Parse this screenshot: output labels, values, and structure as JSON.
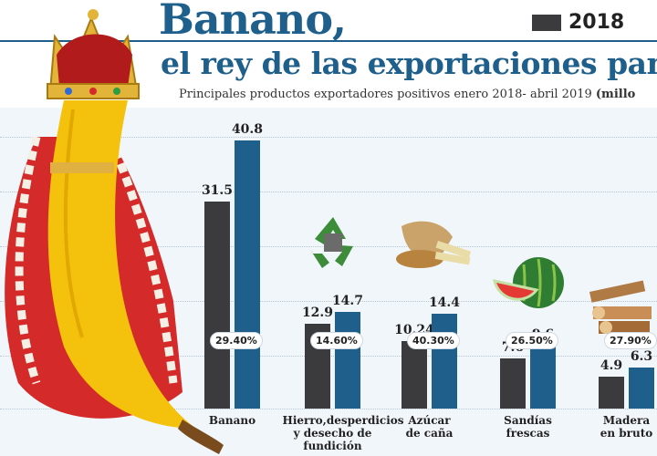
{
  "header": {
    "title": "Banano,",
    "subtitle_line": "el rey de las exportaciones pana",
    "description": "Principales productos exportadores positivos enero 2018- abril 2019",
    "description_unit": "(millo"
  },
  "legend": [
    {
      "label": "2018",
      "color": "#3b3b3d"
    }
  ],
  "colors": {
    "bar_2018": "#3b3b3d",
    "bar_2019": "#1e5f8c",
    "title": "#1e5f8c"
  },
  "chart_data": {
    "type": "bar",
    "title": "Banano, el rey de las exportaciones pana",
    "categories": [
      "Banano",
      "Hierro,desperdicios\ny desecho de\nfundición",
      "Azúcar\nde caña",
      "Sandías\nfrescas",
      "Madera\nen bruto"
    ],
    "series": [
      {
        "name": "2018",
        "values": [
          31.5,
          12.9,
          10.24,
          7.6,
          4.9
        ]
      },
      {
        "values": [
          40.8,
          14.7,
          14.4,
          9.6,
          6.3
        ]
      }
    ],
    "value_labels_2018": [
      "31.5",
      "12.9",
      "10.24",
      "7.6",
      "4.9"
    ],
    "value_labels_2019": [
      "40.8",
      "14.7",
      "14.4",
      "9.6",
      "6.3"
    ],
    "percentages": [
      "29.40%",
      "14.60%",
      "40.30%",
      "26.50%",
      "27.90%"
    ],
    "icons": [
      "crowned-banana-icon",
      "recycle-icon",
      "sugarcane-icon",
      "watermelon-icon",
      "firewood-icon"
    ],
    "ylim": [
      0,
      45
    ],
    "grid": true,
    "legend_position": "top-right"
  }
}
